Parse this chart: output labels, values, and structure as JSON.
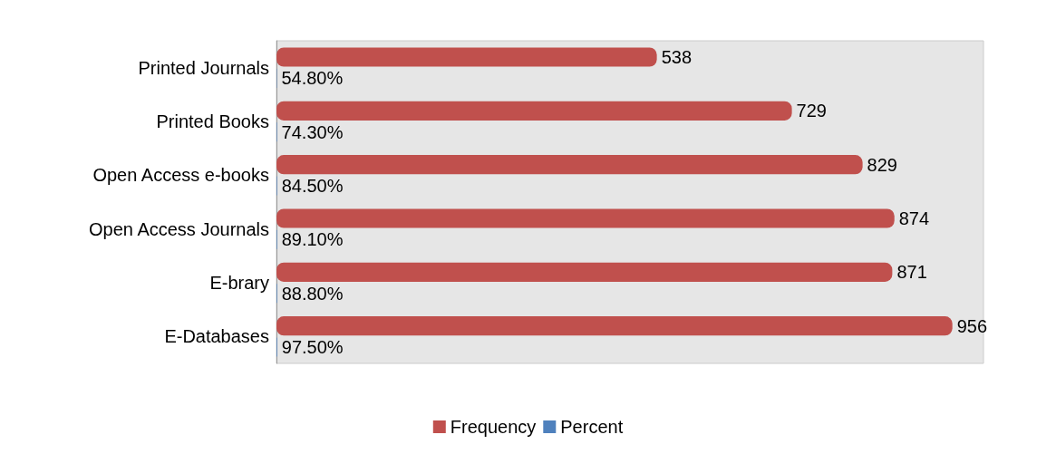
{
  "chart_data": {
    "type": "bar",
    "orientation": "horizontal",
    "categories": [
      "Printed Journals",
      "Printed Books",
      "Open Access e-books",
      "Open Access Journals",
      "E-brary",
      "E-Databases"
    ],
    "series": [
      {
        "name": "Frequency",
        "color": "#c0504d",
        "values": [
          538,
          729,
          829,
          874,
          871,
          956
        ],
        "value_labels": [
          "538",
          "729",
          "829",
          "874",
          "871",
          "956"
        ]
      },
      {
        "name": "Percent",
        "color": "#4f81bd",
        "values": [
          0.548,
          0.743,
          0.845,
          0.891,
          0.888,
          0.975
        ],
        "value_labels": [
          "54.80%",
          "74.30%",
          "84.50%",
          "89.10%",
          "88.80%",
          "97.50%"
        ]
      }
    ],
    "legend": "bottom"
  }
}
